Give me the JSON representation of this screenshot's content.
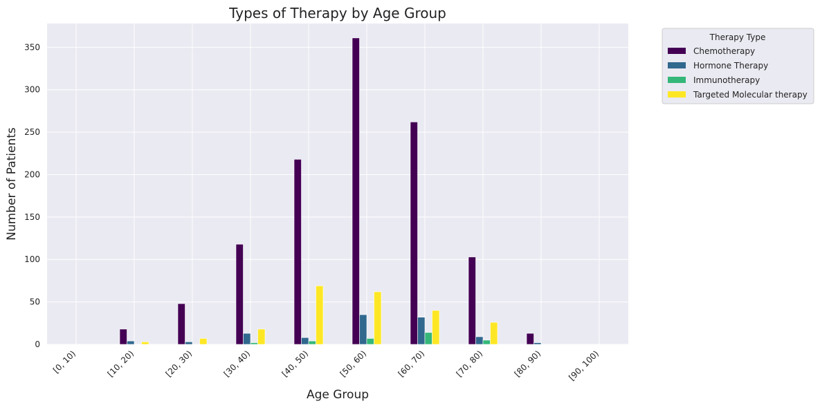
{
  "chart_data": {
    "type": "bar",
    "title": "Types of Therapy by Age Group",
    "xlabel": "Age Group",
    "ylabel": "Number of Patients",
    "ylim": [
      0,
      378
    ],
    "yticks": [
      0,
      50,
      100,
      150,
      200,
      250,
      300,
      350
    ],
    "grid": true,
    "legend_title": "Therapy Type",
    "legend_position": "outside-upper-right",
    "categories": [
      "[0, 10)",
      "[10, 20)",
      "[20, 30)",
      "[30, 40)",
      "[40, 50)",
      "[50, 60)",
      "[60, 70)",
      "[70, 80)",
      "[80, 90)",
      "[90, 100)"
    ],
    "series": [
      {
        "name": "Chemotherapy",
        "color": "#440154",
        "values": [
          0,
          18,
          48,
          118,
          218,
          361,
          262,
          103,
          13,
          0
        ]
      },
      {
        "name": "Hormone Therapy",
        "color": "#31688e",
        "values": [
          0,
          4,
          3,
          13,
          8,
          35,
          32,
          9,
          2,
          0
        ]
      },
      {
        "name": "Immunotherapy",
        "color": "#35b779",
        "values": [
          0,
          0,
          0,
          2,
          4,
          7,
          14,
          5,
          0,
          0
        ]
      },
      {
        "name": "Targeted Molecular therapy",
        "color": "#fde725",
        "values": [
          0,
          3,
          7,
          18,
          69,
          62,
          40,
          26,
          0,
          0
        ]
      }
    ]
  }
}
